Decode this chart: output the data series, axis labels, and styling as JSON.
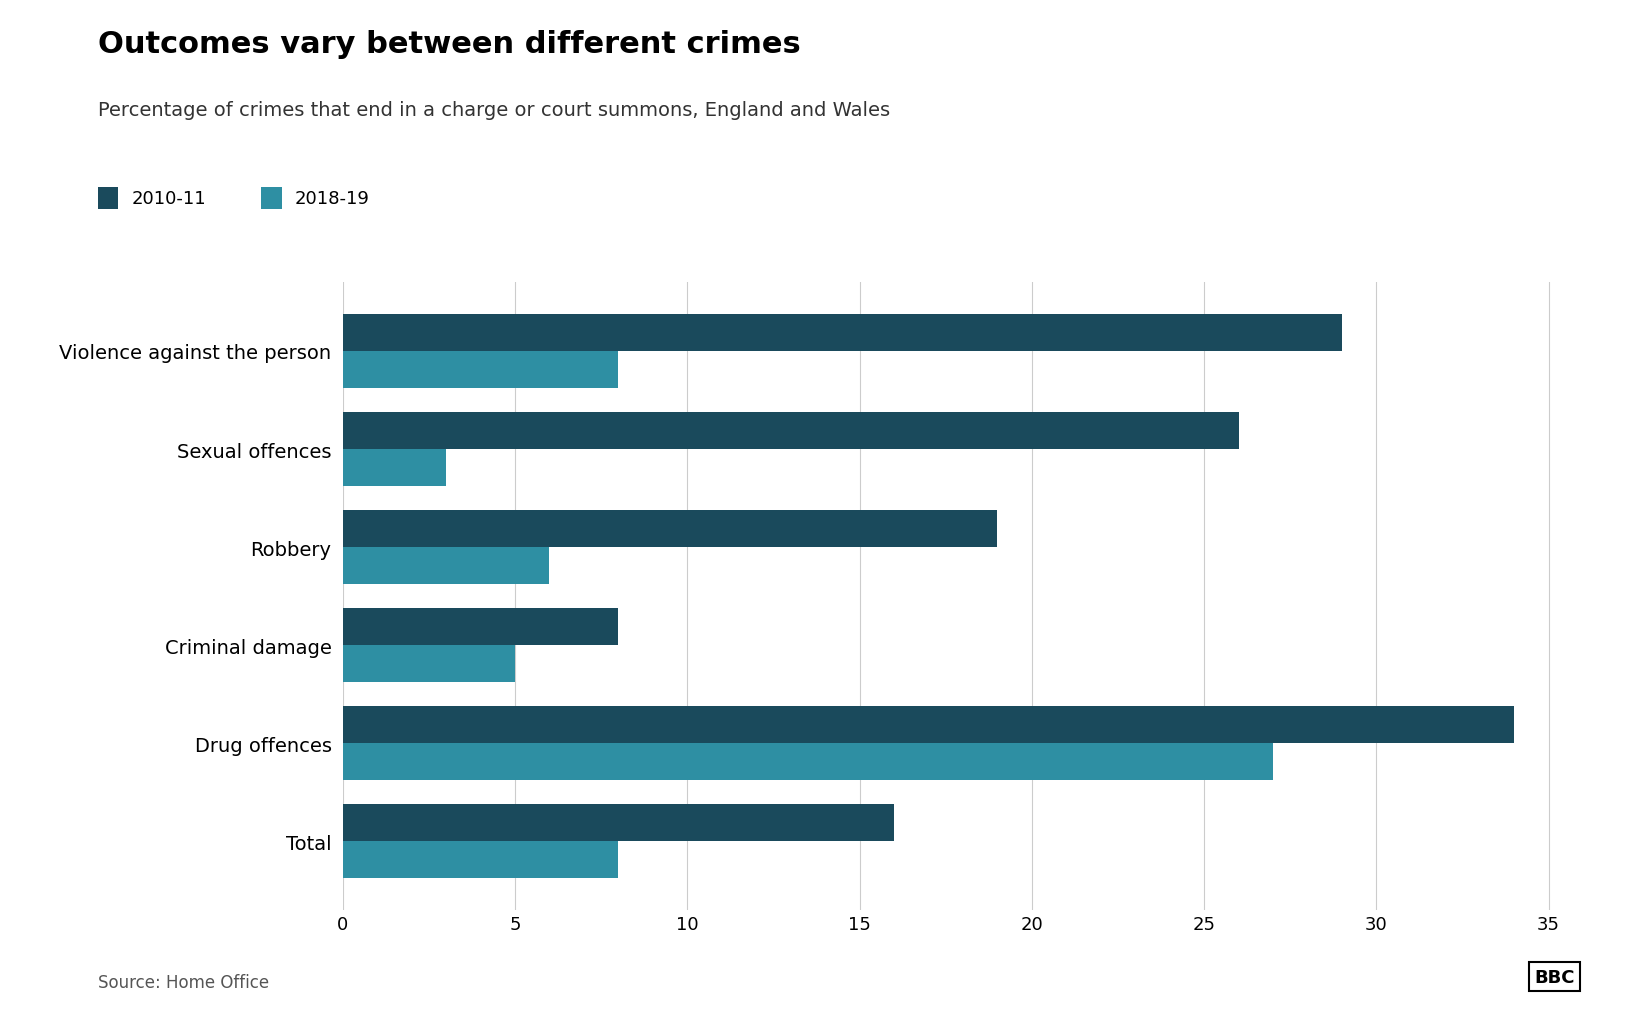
{
  "title": "Outcomes vary between different crimes",
  "subtitle": "Percentage of crimes that end in a charge or court summons, England and Wales",
  "source": "Source: Home Office",
  "categories": [
    "Violence against the person",
    "Sexual offences",
    "Robbery",
    "Criminal damage",
    "Drug offences",
    "Total"
  ],
  "values_2010": [
    29,
    26,
    19,
    8,
    34,
    16
  ],
  "values_2018": [
    8,
    3,
    6,
    5,
    27,
    8
  ],
  "color_2010": "#1a4a5c",
  "color_2018": "#2e8fa3",
  "legend_2010": "2010-11",
  "legend_2018": "2018-19",
  "xlim": [
    0,
    36
  ],
  "xticks": [
    0,
    5,
    10,
    15,
    20,
    25,
    30,
    35
  ],
  "bar_height": 0.38,
  "background_color": "#ffffff",
  "title_fontsize": 22,
  "subtitle_fontsize": 14,
  "source_fontsize": 12,
  "tick_fontsize": 13,
  "label_fontsize": 14,
  "legend_fontsize": 13
}
